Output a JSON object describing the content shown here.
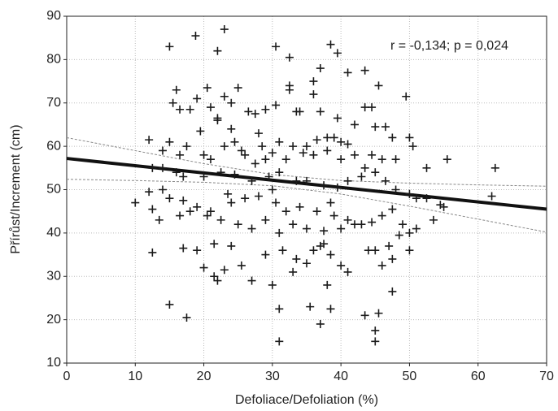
{
  "chart_data": {
    "type": "scatter",
    "x_label": "Defoliace/Defoliation (%)",
    "y_label": "Přírůst/Increment (cm)",
    "annotation": "r = -0,134; p = 0,024",
    "xlim": [
      0,
      70
    ],
    "xticks": [
      0,
      10,
      20,
      30,
      40,
      50,
      60,
      70
    ],
    "ylim": [
      10,
      90
    ],
    "yticks": [
      10,
      20,
      30,
      40,
      50,
      60,
      70,
      80,
      90
    ],
    "grid": true,
    "color": "#1a1a1a",
    "marker": "+",
    "x": [
      15,
      18.8,
      23,
      22,
      30.5,
      32.5,
      38.5,
      39.5,
      41,
      43.5,
      37,
      36,
      32.5,
      32.5,
      45.5,
      36,
      49.5,
      15.5,
      16,
      19,
      20.5,
      23,
      25,
      24,
      29,
      30.5,
      16.5,
      18,
      21,
      22,
      22,
      26.5,
      27.5,
      33.5,
      34,
      37,
      39.5,
      43.5,
      44.5,
      45,
      46.5,
      47.5,
      50,
      50.5,
      41,
      40,
      38,
      39,
      36.5,
      33,
      31,
      28.5,
      24.5,
      25.5,
      23,
      19.5,
      12,
      14,
      15,
      16.5,
      17.5,
      20,
      21,
      26,
      29,
      30,
      32,
      34.5,
      36,
      38,
      40,
      42,
      44.5,
      46,
      48,
      52.5,
      55.5,
      62.5,
      12.5,
      14,
      16,
      17,
      20,
      22.5,
      24.5,
      27,
      29.5,
      31,
      33.5,
      35,
      37.5,
      39.5,
      41,
      43.5,
      45,
      46.5,
      48,
      50,
      51,
      52.5,
      54.5,
      55,
      62,
      12,
      15,
      17,
      19,
      21,
      24,
      26,
      28,
      30.5,
      32,
      34,
      36.5,
      38.5,
      41,
      43,
      44.5,
      46,
      47.5,
      49,
      50,
      51,
      53.5,
      10,
      12.5,
      13.5,
      16.5,
      18,
      20.5,
      22.5,
      25,
      27,
      29,
      31,
      33,
      35,
      37.5,
      40,
      42,
      44,
      45,
      47,
      48.5,
      50,
      12.5,
      17,
      19,
      21.5,
      24,
      25.5,
      29,
      31.5,
      33.5,
      36,
      37.5,
      38.5,
      40,
      41,
      46,
      47.5,
      20,
      21.5,
      22,
      23,
      27,
      30,
      33,
      35,
      38,
      47.5,
      15,
      17.5,
      31,
      35.5,
      37,
      38.5,
      43.5,
      45.5,
      45,
      45,
      31,
      37,
      39,
      43,
      14,
      23.5,
      27.5,
      30,
      35,
      42,
      24,
      28
    ],
    "values": [
      83,
      85.5,
      87,
      82,
      83,
      80.5,
      83.5,
      81.5,
      77,
      77.5,
      78,
      75,
      74,
      73,
      74,
      72,
      71.5,
      70,
      73,
      71,
      73.5,
      71.5,
      73.5,
      70,
      68.5,
      69.5,
      68.5,
      68.5,
      69,
      66.5,
      66,
      68,
      67.5,
      68,
      68,
      68,
      66.5,
      69,
      69,
      64.5,
      64.5,
      62,
      62,
      60,
      60.5,
      61,
      62,
      62,
      61.5,
      60,
      61,
      60,
      61,
      59,
      60,
      63.5,
      61.5,
      59,
      61,
      58,
      60,
      58,
      57,
      58,
      57,
      58.5,
      57,
      58.5,
      58,
      59,
      57,
      58,
      58,
      57,
      57,
      55,
      57,
      55,
      55,
      55,
      54,
      53,
      53,
      54,
      53.5,
      52,
      53,
      54,
      52,
      52,
      51,
      50.5,
      52,
      55,
      54,
      52,
      50,
      49,
      48,
      48,
      46.5,
      46,
      48.5,
      49.5,
      48,
      47.5,
      46,
      45,
      47,
      48,
      48.5,
      47,
      45,
      46,
      45,
      47,
      43,
      42,
      42.5,
      44,
      45.5,
      42,
      40,
      41,
      43,
      47,
      45.5,
      43,
      44,
      45,
      44,
      43,
      42,
      41,
      43,
      40,
      42,
      41,
      40.5,
      41,
      42,
      36,
      36,
      37,
      39.5,
      36,
      35.5,
      36.5,
      36,
      37.5,
      37,
      32.5,
      35,
      36,
      34,
      36,
      37.5,
      35,
      32.5,
      31,
      32.5,
      34,
      32,
      30,
      29,
      31.5,
      29,
      28,
      31,
      33,
      28,
      26.5,
      23.5,
      20.5,
      22.5,
      23,
      19,
      22.5,
      21,
      21.5,
      17.5,
      15,
      15,
      37,
      44,
      53,
      50,
      49,
      56,
      50,
      60,
      65,
      64,
      63
    ],
    "fit": {
      "x": [
        0,
        70
      ],
      "values": [
        57.2,
        45.5
      ],
      "color": "#111111"
    },
    "bands": [
      {
        "x": [
          0,
          10,
          20,
          30,
          40,
          50,
          60,
          70
        ],
        "values": [
          62.0,
          59.0,
          56.0,
          53.5,
          52.1,
          51.5,
          51.1,
          50.8
        ]
      },
      {
        "x": [
          0,
          10,
          20,
          30,
          40,
          50,
          60,
          70
        ],
        "values": [
          52.4,
          52.1,
          51.7,
          50.9,
          49.0,
          46.2,
          43.2,
          40.2
        ]
      }
    ],
    "band_color": "#888888"
  }
}
